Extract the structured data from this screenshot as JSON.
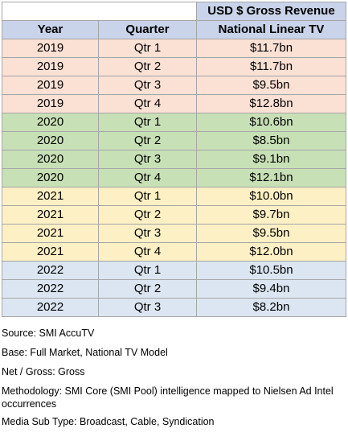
{
  "table": {
    "header_top": {
      "revenue_title": "USD $ Gross Revenue"
    },
    "header": {
      "year": "Year",
      "quarter": "Quarter",
      "revenue": "National Linear TV"
    },
    "colors": {
      "2019": "#fbe0d4",
      "2020": "#c8e0b6",
      "2021": "#fef0c5",
      "2022": "#dce6f2",
      "header": "#c9d3e9"
    },
    "rows": [
      {
        "year": "2019",
        "quarter": "Qtr 1",
        "revenue": "$11.7bn"
      },
      {
        "year": "2019",
        "quarter": "Qtr 2",
        "revenue": "$11.7bn"
      },
      {
        "year": "2019",
        "quarter": "Qtr 3",
        "revenue": "$9.5bn"
      },
      {
        "year": "2019",
        "quarter": "Qtr 4",
        "revenue": "$12.8bn"
      },
      {
        "year": "2020",
        "quarter": "Qtr 1",
        "revenue": "$10.6bn"
      },
      {
        "year": "2020",
        "quarter": "Qtr 2",
        "revenue": "$8.5bn"
      },
      {
        "year": "2020",
        "quarter": "Qtr 3",
        "revenue": "$9.1bn"
      },
      {
        "year": "2020",
        "quarter": "Qtr 4",
        "revenue": "$12.1bn"
      },
      {
        "year": "2021",
        "quarter": "Qtr 1",
        "revenue": "$10.0bn"
      },
      {
        "year": "2021",
        "quarter": "Qtr 2",
        "revenue": "$9.7bn"
      },
      {
        "year": "2021",
        "quarter": "Qtr 3",
        "revenue": "$9.5bn"
      },
      {
        "year": "2021",
        "quarter": "Qtr 4",
        "revenue": "$12.0bn"
      },
      {
        "year": "2022",
        "quarter": "Qtr 1",
        "revenue": "$10.5bn"
      },
      {
        "year": "2022",
        "quarter": "Qtr 2",
        "revenue": "$9.4bn"
      },
      {
        "year": "2022",
        "quarter": "Qtr 3",
        "revenue": "$8.2bn"
      }
    ]
  },
  "notes": {
    "source": "Source: SMI AccuTV",
    "base": "Base: Full Market, National TV Model",
    "net_gross": "Net / Gross:  Gross",
    "methodology": "Methodology: SMI Core (SMI Pool) intelligence mapped to Nielsen Ad Intel occurrences",
    "media_sub_type": "Media Sub Type: Broadcast, Cable, Syndication"
  }
}
